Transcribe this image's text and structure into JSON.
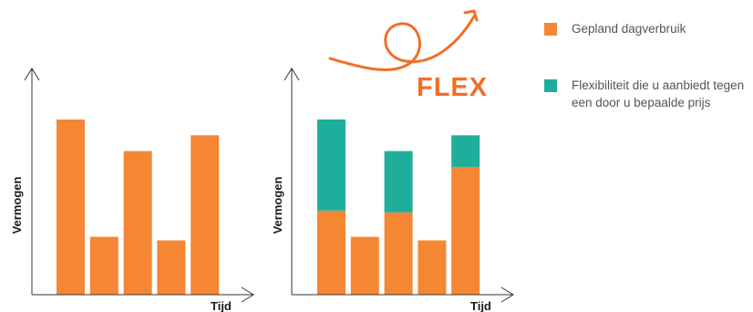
{
  "colors": {
    "planned": "#f58634",
    "flex": "#1fae9c",
    "flex_word": "#f36e27",
    "axis": "#333333"
  },
  "flex_graphic": {
    "word": "FLEX"
  },
  "legend": {
    "planned_label": "Gepland dagverbruik",
    "flex_label": "Flexibiliteit die u aanbiedt tegen een door u bepaalde prijs"
  },
  "chart_data": [
    {
      "type": "bar",
      "title": "",
      "xlabel": "Tijd",
      "ylabel": "Vermogen",
      "ylim": [
        0,
        100
      ],
      "categories": [
        "",
        "",
        "",
        "",
        ""
      ],
      "series": [
        {
          "name": "Gepland dagverbruik",
          "values": [
            100,
            33,
            82,
            31,
            91
          ]
        }
      ]
    },
    {
      "type": "bar",
      "stacked": true,
      "title": "",
      "xlabel": "Tijd",
      "ylabel": "Vermogen",
      "ylim": [
        0,
        100
      ],
      "categories": [
        "",
        "",
        "",
        "",
        ""
      ],
      "series": [
        {
          "name": "Gepland dagverbruik",
          "values": [
            48,
            33,
            47,
            31,
            73
          ]
        },
        {
          "name": "Flexibiliteit die u aanbiedt tegen een door u bepaalde prijs",
          "values": [
            52,
            0,
            35,
            0,
            18
          ]
        }
      ]
    }
  ]
}
